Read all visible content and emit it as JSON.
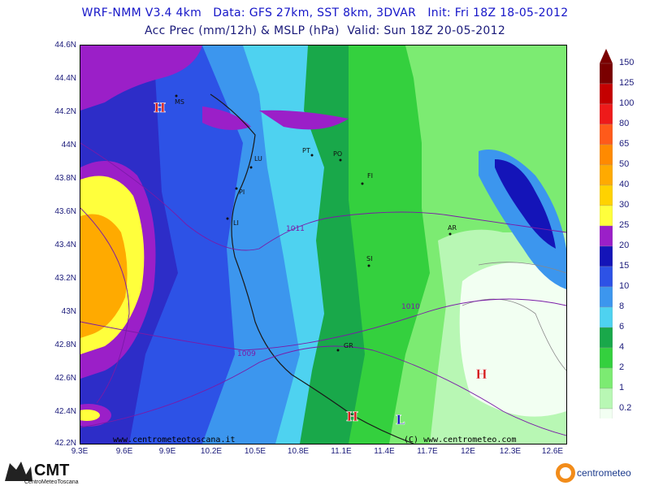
{
  "header": {
    "line1": "WRF-NMM V3.4 4km   Data: GFS 27km, SST 8km, 3DVAR   Init: Fri 18Z 18-05-2012",
    "line2": "Acc Prec (mm/12h) & MSLP (hPa)  Valid: Sun 18Z 20-05-2012"
  },
  "axes": {
    "lat_labels": [
      "44.6N",
      "44.4N",
      "44.2N",
      "44N",
      "43.8N",
      "43.6N",
      "43.4N",
      "43.2N",
      "43N",
      "42.8N",
      "42.6N",
      "42.4N",
      "42.2N"
    ],
    "lon_labels": [
      "9.3E",
      "9.6E",
      "9.9E",
      "10.2E",
      "10.5E",
      "10.8E",
      "11.1E",
      "11.4E",
      "11.7E",
      "12E",
      "12.3E",
      "12.6E"
    ]
  },
  "scale": {
    "labels": [
      "150",
      "125",
      "100",
      "80",
      "65",
      "50",
      "40",
      "30",
      "25",
      "20",
      "15",
      "10",
      "8",
      "6",
      "4",
      "2",
      "1",
      "0.2"
    ],
    "colors": [
      "#7a0000",
      "#c40000",
      "#ee1a1a",
      "#ff5a1a",
      "#ff8a00",
      "#ffaa00",
      "#ffd200",
      "#ffff3c",
      "#9b1fc8",
      "#1414b8",
      "#2d52e6",
      "#3c96ee",
      "#4ed2f0",
      "#19a84a",
      "#34d03e",
      "#7ceb72",
      "#b8f7b4",
      "#f2fff2"
    ]
  },
  "cities": [
    "MS",
    "LU",
    "PT",
    "PO",
    "PI",
    "FI",
    "LI",
    "AR",
    "SI",
    "GR"
  ],
  "isobars": [
    "1011",
    "1010",
    "1009"
  ],
  "pressure_centers": [
    "H",
    "H",
    "H",
    "L"
  ],
  "watermark_left": "www.centrometeotoscana.it",
  "watermark_right": "(C) www.centrometeo.com",
  "logos": {
    "cmt": "CMT",
    "cmt_sub": "CentroMeteoToscana",
    "centrometeo": "centrometeo"
  },
  "colors": {
    "title": "#1515c8",
    "isobar": "#7a1aa8",
    "high": "#d21a1a",
    "low": "#1414b8"
  }
}
